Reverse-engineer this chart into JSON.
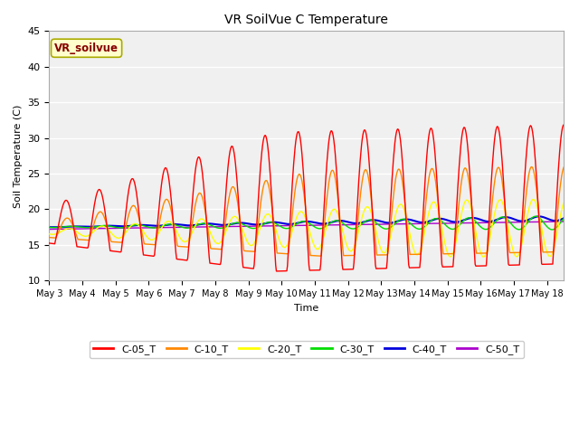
{
  "title": "VR SoilVue C Temperature",
  "ylabel": "Soil Temperature (C)",
  "xlabel": "Time",
  "ylim": [
    10,
    45
  ],
  "yticks": [
    10,
    15,
    20,
    25,
    30,
    35,
    40,
    45
  ],
  "fig_bg": "#ffffff",
  "plot_bg": "#f0f0f0",
  "annotation_text": "VR_soilvue",
  "annotation_bg": "#ffffcc",
  "annotation_border": "#aaaa00",
  "annotation_color": "#880000",
  "series_colors": {
    "C-05_T": "#ff0000",
    "C-10_T": "#ff8800",
    "C-20_T": "#ffff00",
    "C-30_T": "#00dd00",
    "C-40_T": "#0000dd",
    "C-50_T": "#aa00cc"
  },
  "tick_labels": [
    "May 3",
    "May 4",
    "May 5",
    "May 6",
    "May 7",
    "May 8",
    "May 9",
    "May 10",
    "May 11",
    "May 12",
    "May 13",
    "May 14",
    "May 15",
    "May 16",
    "May 17",
    "May 18"
  ],
  "n_days": 15.5
}
